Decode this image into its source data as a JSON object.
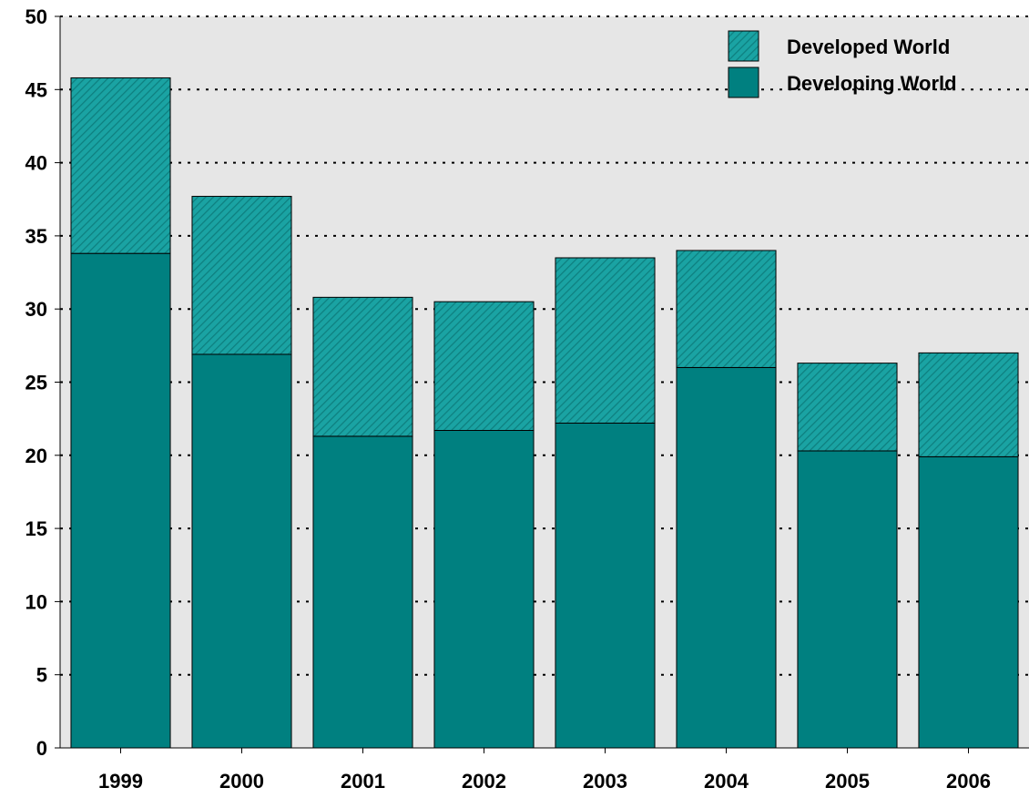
{
  "chart_data": {
    "type": "bar",
    "stacked": true,
    "categories": [
      "1999",
      "2000",
      "2001",
      "2002",
      "2003",
      "2004",
      "2005",
      "2006"
    ],
    "series": [
      {
        "name": "Developing World",
        "values": [
          33.8,
          26.9,
          21.3,
          21.7,
          22.2,
          26.0,
          20.3,
          19.9
        ]
      },
      {
        "name": "Developed World",
        "values": [
          12.0,
          10.8,
          9.5,
          8.8,
          11.3,
          8.0,
          6.0,
          7.1
        ]
      }
    ],
    "ylim": [
      0,
      50
    ],
    "yticks": [
      "0",
      "5",
      "10",
      "15",
      "20",
      "25",
      "30",
      "35",
      "40",
      "45",
      "50"
    ],
    "grid": "horizontal-dotted",
    "legend_position": "top-right",
    "colors": {
      "developing": "#008080",
      "developed": "#1aa3a3",
      "developed_hatch": "#0e7f7f",
      "plot_background": "#e6e6e6",
      "bar_outline": "#000000"
    }
  }
}
